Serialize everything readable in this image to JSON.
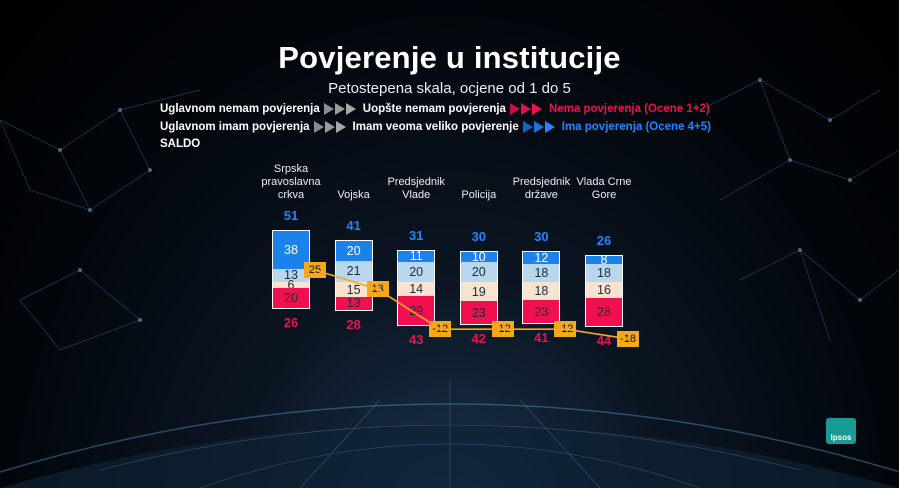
{
  "title": "Povjerenje u institucije",
  "subtitle": "Petostepena skala, ocjene od 1 do 5",
  "legend": {
    "row1": {
      "a": "Uglavnom nemam povjerenja",
      "b": "Uopšte nemam povjerenja",
      "c": "Nema povjerenja (Ocene 1+2)"
    },
    "row2": {
      "a": "Uglavnom imam povjerenja",
      "b": "Imam veoma veliko povjerenje",
      "c": "Ima povjerenja (Ocene 4+5)"
    },
    "saldo": "SALDO"
  },
  "logo_text": "Ipsos",
  "colors": {
    "very_high": "#1a82e8",
    "mostly_trust": "#b9d7ec",
    "neutral": "#f8e3d0",
    "no_trust": "#f0104f",
    "saldo_badge": "#f5a81c",
    "saldo_line": "#f5a81c",
    "total_trust_text": "#1f86ff",
    "total_no_trust_text": "#e8124f"
  },
  "chart_data": {
    "type": "bar",
    "stacked": true,
    "title": "Povjerenje u institucije",
    "subtitle": "Petostepena skala, ocjene od 1 do 5",
    "categories": [
      "Srpska\npravoslavna\ncrkva",
      "Vojska",
      "Predsjednik\nVlade",
      "Policija",
      "Predsjednik\ndržave",
      "Vlada Crne\nGore"
    ],
    "series": [
      {
        "key": "very_high",
        "values": [
          38,
          20,
          11,
          10,
          12,
          8
        ]
      },
      {
        "key": "mostly_trust",
        "values": [
          13,
          21,
          20,
          20,
          18,
          18
        ]
      },
      {
        "key": "neutral",
        "values": [
          6,
          15,
          14,
          19,
          18,
          16
        ]
      },
      {
        "key": "no_trust",
        "values": [
          20,
          13,
          29,
          23,
          23,
          28
        ]
      }
    ],
    "total_trust": [
      51,
      41,
      31,
      30,
      30,
      26
    ],
    "total_no_trust": [
      26,
      28,
      43,
      42,
      41,
      44
    ],
    "saldo": [
      25,
      13,
      -12,
      -12,
      -12,
      -18
    ]
  }
}
